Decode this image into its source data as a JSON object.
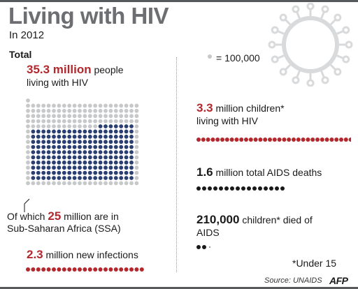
{
  "header": {
    "title": "Living with HIV",
    "subtitle": "In 2012"
  },
  "total": {
    "label": "Total",
    "value": "35.3 million",
    "text_rest": " people",
    "text_line2": "living with HIV",
    "grid_note_prefix": "Of which ",
    "grid_note_value": "25",
    "grid_note_rest": " million are in",
    "grid_note_line2": "Sub-Saharan Africa (SSA)"
  },
  "legend": {
    "text": "= 100,000"
  },
  "stats": {
    "new_infections": {
      "value": "2.3",
      "rest": " million new infections"
    },
    "children_living": {
      "value": "3.3",
      "rest": " million children*",
      "line2": "living with HIV"
    },
    "aids_deaths": {
      "value": "1.6",
      "rest": " million total AIDS deaths"
    },
    "children_died": {
      "value": "210,000",
      "rest": " children* died of",
      "line2": "AIDS"
    }
  },
  "footnote": "*Under 15",
  "source": "Source: UNAIDS",
  "agency": "AFP",
  "colors": {
    "red": "#b2282d",
    "navy": "#2b3f73",
    "grey": "#c7c8ca",
    "dark": "#1a1a1a",
    "title": "#6d6e71"
  },
  "dots": {
    "total_units": 353,
    "ssa_units": 250,
    "new_infections_units": 23,
    "children_living_units": 33,
    "aids_deaths_units": 16,
    "children_died_units": 2.1
  }
}
